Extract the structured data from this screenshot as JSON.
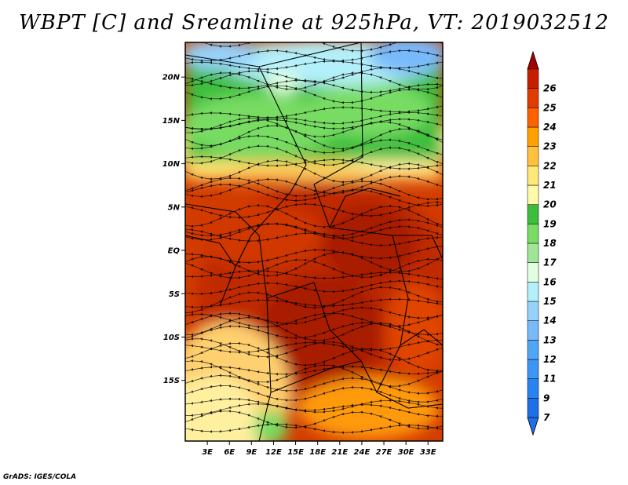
{
  "title": "WBPT [C] and Sreamline at 925hPa, VT: 2019032512",
  "credit": "GrADS: IGES/COLA",
  "map": {
    "lon_range": [
      0,
      35
    ],
    "lat_range": [
      -22,
      24
    ],
    "lat_ticks": [
      {
        "value": 20,
        "label": "20N"
      },
      {
        "value": 15,
        "label": "15N"
      },
      {
        "value": 10,
        "label": "10N"
      },
      {
        "value": 5,
        "label": "5N"
      },
      {
        "value": 0,
        "label": "EQ"
      },
      {
        "value": -5,
        "label": "5S"
      },
      {
        "value": -10,
        "label": "10S"
      },
      {
        "value": -15,
        "label": "15S"
      }
    ],
    "lon_ticks": [
      {
        "value": 3,
        "label": "3E"
      },
      {
        "value": 6,
        "label": "6E"
      },
      {
        "value": 9,
        "label": "9E"
      },
      {
        "value": 12,
        "label": "12E"
      },
      {
        "value": 15,
        "label": "15E"
      },
      {
        "value": 18,
        "label": "18E"
      },
      {
        "value": 21,
        "label": "21E"
      },
      {
        "value": 24,
        "label": "24E"
      },
      {
        "value": 27,
        "label": "27E"
      },
      {
        "value": 30,
        "label": "30E"
      },
      {
        "value": 33,
        "label": "33E"
      }
    ]
  },
  "colorbar": {
    "levels": [
      {
        "label": "7",
        "color": "#1e6ee6"
      },
      {
        "label": "9",
        "color": "#2882f0"
      },
      {
        "label": "11",
        "color": "#3c96f5"
      },
      {
        "label": "12",
        "color": "#50a5f5"
      },
      {
        "label": "13",
        "color": "#78b9fa"
      },
      {
        "label": "14",
        "color": "#96d2fa"
      },
      {
        "label": "15",
        "color": "#b4f0fa"
      },
      {
        "label": "16",
        "color": "#e1ffe1"
      },
      {
        "label": "17",
        "color": "#a0e696"
      },
      {
        "label": "18",
        "color": "#78dc64"
      },
      {
        "label": "19",
        "color": "#3cbe3c"
      },
      {
        "label": "20",
        "color": "#fffaaa"
      },
      {
        "label": "21",
        "color": "#ffe878"
      },
      {
        "label": "22",
        "color": "#ffc03c"
      },
      {
        "label": "23",
        "color": "#ffa000"
      },
      {
        "label": "24",
        "color": "#ff6000"
      },
      {
        "label": "25",
        "color": "#e03c00"
      },
      {
        "label": "26",
        "color": "#c81e00"
      }
    ],
    "over_color": "#a50000",
    "under_color": "#1e6ee6"
  }
}
